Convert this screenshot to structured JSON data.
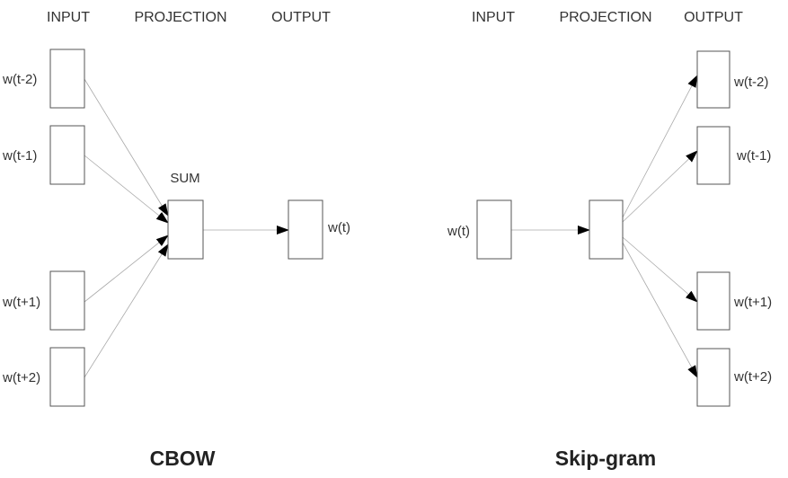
{
  "cbow": {
    "headers": {
      "input": "INPUT",
      "projection": "PROJECTION",
      "output": "OUTPUT"
    },
    "inputs": [
      "w(t-2)",
      "w(t-1)",
      "w(t+1)",
      "w(t+2)"
    ],
    "sum_label": "SUM",
    "output": "w(t)",
    "title": "CBOW"
  },
  "skipgram": {
    "headers": {
      "input": "INPUT",
      "projection": "PROJECTION",
      "output": "OUTPUT"
    },
    "input": "w(t)",
    "outputs": [
      "w(t-2)",
      "w(t-1)",
      "w(t+1)",
      "w(t+2)"
    ],
    "title": "Skip-gram"
  },
  "colors": {
    "box_stroke": "#555555",
    "edge": "#aaaaaa",
    "arrowhead": "#000000",
    "text": "#333333"
  }
}
